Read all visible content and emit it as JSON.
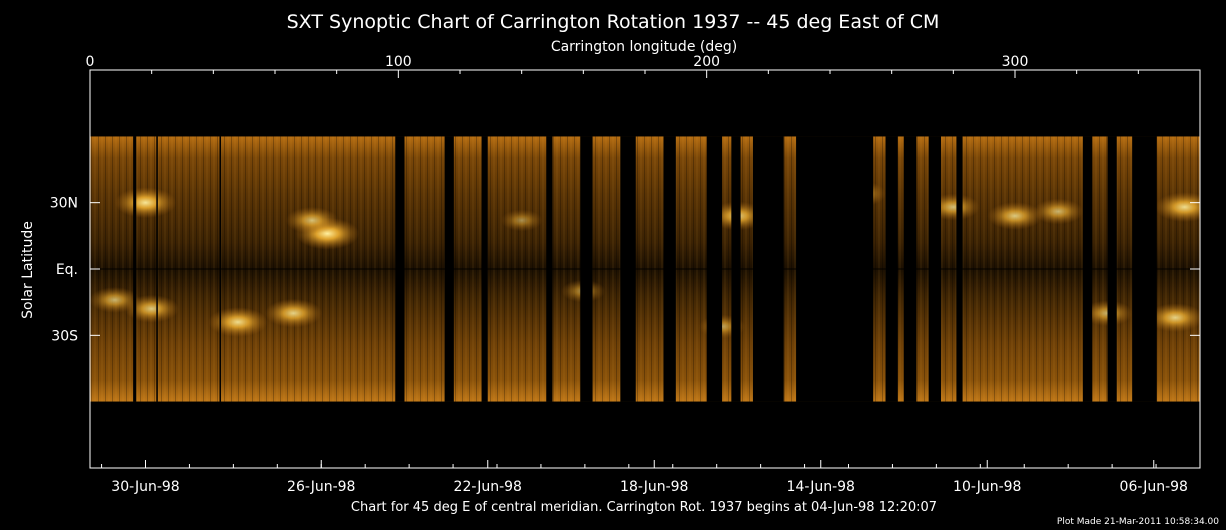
{
  "chart_data": {
    "type": "heatmap",
    "title": "SXT Synoptic Chart of Carrington Rotation 1937 -- 45 deg East of CM",
    "top_axis": {
      "label": "Carrington longitude (deg)",
      "range": [
        0,
        360
      ],
      "ticks": [
        0,
        100,
        200,
        300
      ],
      "tick_labels": [
        "0",
        "100",
        "200",
        "300"
      ]
    },
    "y_axis": {
      "label": "Solar Latitude",
      "range": [
        90,
        -90
      ],
      "ticks": [
        30,
        0,
        -30
      ],
      "tick_labels": [
        "30N",
        "Eq.",
        "30S"
      ]
    },
    "bottom_axis": {
      "tick_labels": [
        "30-Jun-98",
        "26-Jun-98",
        "22-Jun-98",
        "18-Jun-98",
        "14-Jun-98",
        "10-Jun-98",
        "06-Jun-98"
      ],
      "tick_longitudes": [
        18,
        75,
        129,
        183,
        237,
        291,
        345
      ]
    },
    "caption": "Chart for 45 deg E of central meridian.  Carrington Rot. 1937 begins at 04-Jun-98 12:20:07",
    "footer": "Plot Made 21-Mar-2011 10:58:34.00",
    "colormap": [
      "#000000",
      "#4a2a00",
      "#a8640a",
      "#e8a020",
      "#ffe080"
    ],
    "data_extent": {
      "latitude_top": 60,
      "latitude_bottom": -60
    },
    "data_gaps_longitude": [
      [
        14,
        15
      ],
      [
        21.5,
        22
      ],
      [
        42,
        42.5
      ],
      [
        99,
        102
      ],
      [
        115,
        118
      ],
      [
        127,
        129
      ],
      [
        148,
        150
      ],
      [
        159,
        163
      ],
      [
        172,
        177
      ],
      [
        186,
        190
      ],
      [
        200,
        205
      ],
      [
        208,
        211
      ],
      [
        215,
        225
      ],
      [
        229,
        254
      ],
      [
        258,
        262
      ],
      [
        264,
        268
      ],
      [
        272,
        276
      ],
      [
        281,
        283
      ],
      [
        322,
        325
      ],
      [
        330,
        333
      ],
      [
        338,
        346
      ]
    ],
    "features": [
      {
        "longitude": 18,
        "latitude": 30,
        "intensity": 0.95
      },
      {
        "longitude": 77,
        "latitude": 16,
        "intensity": 1.0
      },
      {
        "longitude": 72,
        "latitude": 22,
        "intensity": 0.75
      },
      {
        "longitude": 48,
        "latitude": -24,
        "intensity": 0.9
      },
      {
        "longitude": 66,
        "latitude": -20,
        "intensity": 0.85
      },
      {
        "longitude": 20,
        "latitude": -18,
        "intensity": 0.8
      },
      {
        "longitude": 8,
        "latitude": -14,
        "intensity": 0.7
      },
      {
        "longitude": 210,
        "latitude": 24,
        "intensity": 0.85
      },
      {
        "longitude": 250,
        "latitude": 34,
        "intensity": 0.7
      },
      {
        "longitude": 280,
        "latitude": 28,
        "intensity": 0.75
      },
      {
        "longitude": 300,
        "latitude": 24,
        "intensity": 0.8
      },
      {
        "longitude": 314,
        "latitude": 26,
        "intensity": 0.7
      },
      {
        "longitude": 355,
        "latitude": 28,
        "intensity": 0.9
      },
      {
        "longitude": 352,
        "latitude": -22,
        "intensity": 0.85
      },
      {
        "longitude": 330,
        "latitude": -20,
        "intensity": 0.7
      },
      {
        "longitude": 205,
        "latitude": -26,
        "intensity": 0.6
      },
      {
        "longitude": 160,
        "latitude": -10,
        "intensity": 0.55
      },
      {
        "longitude": 140,
        "latitude": 22,
        "intensity": 0.5
      }
    ]
  }
}
